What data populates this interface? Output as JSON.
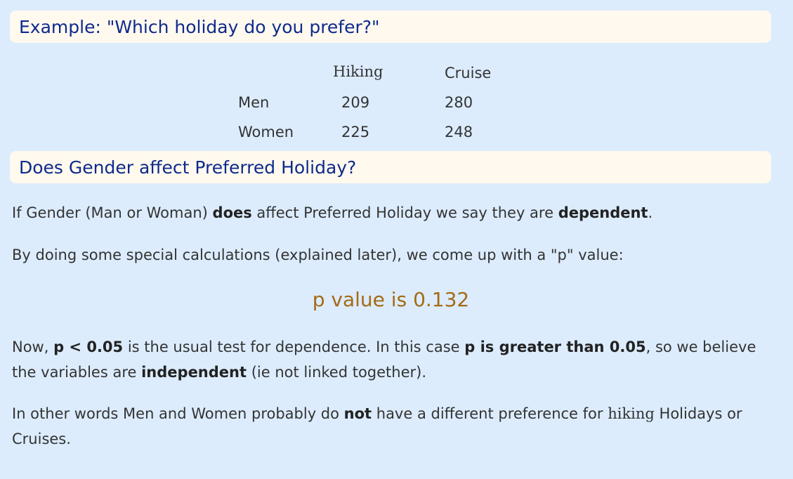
{
  "example_heading": "Example: \"Which holiday do you prefer?\"",
  "table": {
    "col_headers": [
      "Hiking",
      "Cruise"
    ],
    "rows": [
      {
        "label": "Men",
        "hiking": "209",
        "cruise": "280"
      },
      {
        "label": "Women",
        "hiking": "225",
        "cruise": "248"
      }
    ]
  },
  "question_heading": "Does Gender affect Preferred Holiday?",
  "para1": {
    "t1": "If Gender (Man or Woman) ",
    "b1": "does",
    "t2": " affect Preferred Holiday we say they are ",
    "b2": "dependent",
    "t3": "."
  },
  "para2": "By doing some special calculations (explained later), we come up with a \"p\" value:",
  "p_value_text": "p value is 0.132",
  "para3": {
    "t1": "Now, ",
    "b1": "p < 0.05",
    "t2": " is the usual test for dependence. In this case ",
    "b2": "p is greater than 0.05",
    "t3": ", so we believe the variables are ",
    "b3": "independent",
    "t4": " (ie not linked together)."
  },
  "para4": {
    "t1": "In other words Men and Women probably do ",
    "b1": "not",
    "t2": " have a different preference for ",
    "serif_word": "hiking",
    "t3": " Holidays or Cruises."
  }
}
